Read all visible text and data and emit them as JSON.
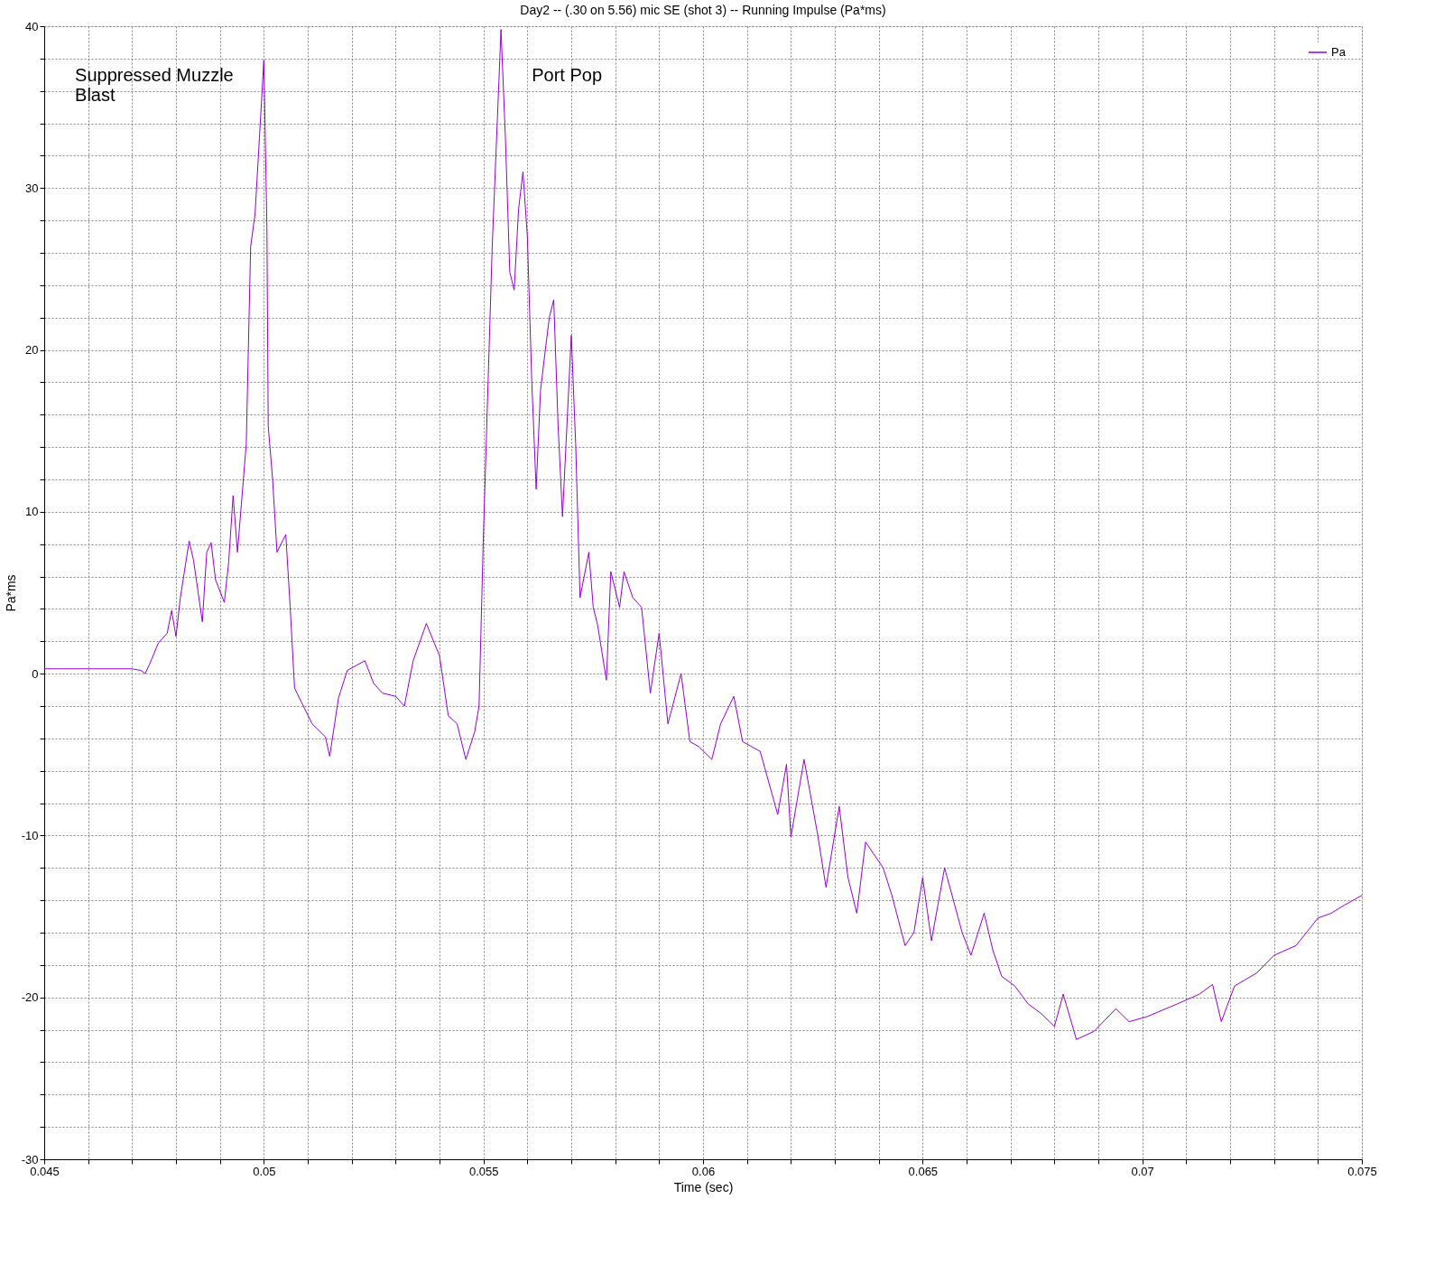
{
  "chart_data": {
    "type": "line",
    "title": "Day2 -- (.30 on 5.56) mic SE (shot 3) -- Running Impulse (Pa*ms)",
    "xlabel": "Time (sec)",
    "ylabel": "Pa*ms",
    "annotations": [
      "Suppressed Muzzle\nBlast",
      "Port Pop"
    ],
    "xlim": [
      0.045,
      0.075
    ],
    "ylim": [
      -30,
      40
    ],
    "xticks": [
      0.045,
      {
        "value": 0.046,
        "label": null
      },
      {
        "value": 0.047,
        "label": null
      },
      {
        "value": 0.048,
        "label": null
      },
      {
        "value": 0.049,
        "label": null
      },
      0.05,
      {
        "value": 0.051,
        "label": null
      },
      {
        "value": 0.052,
        "label": null
      },
      {
        "value": 0.053,
        "label": null
      },
      {
        "value": 0.054,
        "label": null
      },
      0.055,
      {
        "value": 0.056,
        "label": null
      },
      {
        "value": 0.057,
        "label": null
      },
      {
        "value": 0.058,
        "label": null
      },
      {
        "value": 0.059,
        "label": null
      },
      0.06,
      {
        "value": 0.061,
        "label": null
      },
      {
        "value": 0.062,
        "label": null
      },
      {
        "value": 0.063,
        "label": null
      },
      {
        "value": 0.064,
        "label": null
      },
      0.065,
      {
        "value": 0.066,
        "label": null
      },
      {
        "value": 0.067,
        "label": null
      },
      {
        "value": 0.068,
        "label": null
      },
      {
        "value": 0.069,
        "label": null
      },
      0.07,
      {
        "value": 0.071,
        "label": null
      },
      {
        "value": 0.072,
        "label": null
      },
      {
        "value": 0.073,
        "label": null
      },
      {
        "value": 0.074,
        "label": null
      },
      0.075
    ],
    "yticks": [
      -30,
      {
        "value": -28,
        "label": null
      },
      {
        "value": -26,
        "label": null
      },
      {
        "value": -24,
        "label": null
      },
      {
        "value": -22,
        "label": null
      },
      -20,
      {
        "value": -18,
        "label": null
      },
      {
        "value": -16,
        "label": null
      },
      {
        "value": -14,
        "label": null
      },
      {
        "value": -12,
        "label": null
      },
      -10,
      {
        "value": -8,
        "label": null
      },
      {
        "value": -6,
        "label": null
      },
      {
        "value": -4,
        "label": null
      },
      {
        "value": -2,
        "label": null
      },
      0,
      {
        "value": 2,
        "label": null
      },
      {
        "value": 4,
        "label": null
      },
      {
        "value": 6,
        "label": null
      },
      {
        "value": 8,
        "label": null
      },
      10,
      {
        "value": 12,
        "label": null
      },
      {
        "value": 14,
        "label": null
      },
      {
        "value": 16,
        "label": null
      },
      {
        "value": 18,
        "label": null
      },
      20,
      {
        "value": 22,
        "label": null
      },
      {
        "value": 24,
        "label": null
      },
      {
        "value": 26,
        "label": null
      },
      {
        "value": 28,
        "label": null
      },
      30,
      {
        "value": 32,
        "label": null
      },
      {
        "value": 34,
        "label": null
      },
      {
        "value": 36,
        "label": null
      },
      {
        "value": 38,
        "label": null
      },
      40
    ],
    "grid": true,
    "legend": "top right",
    "line_style": "solid",
    "marker": "none",
    "series": [
      {
        "name": "Pa",
        "color": "#9400d3",
        "x": [
          0.045,
          0.047,
          0.0472,
          0.0473,
          0.0474,
          0.0476,
          0.0478,
          0.0479,
          0.048,
          0.0481,
          0.0483,
          0.0484,
          0.0486,
          0.0487,
          0.0488,
          0.0489,
          0.0491,
          0.0492,
          0.0493,
          0.0494,
          0.0496,
          0.0497,
          0.0498,
          0.0499,
          0.05,
          0.05007,
          0.0501,
          0.0502,
          0.0503,
          0.0505,
          0.0506,
          0.0507,
          0.0509,
          0.0511,
          0.0514,
          0.0515,
          0.0517,
          0.0519,
          0.0523,
          0.0525,
          0.0527,
          0.053,
          0.0532,
          0.0534,
          0.0537,
          0.054,
          0.0542,
          0.0544,
          0.0546,
          0.0548,
          0.0549,
          0.055,
          0.0552,
          0.0554,
          0.0555,
          0.0556,
          0.0557,
          0.0558,
          0.0559,
          0.056,
          0.0561,
          0.0562,
          0.0563,
          0.0564,
          0.0565,
          0.0566,
          0.0567,
          0.0568,
          0.0569,
          0.057,
          0.0571,
          0.0572,
          0.0574,
          0.0575,
          0.0576,
          0.0578,
          0.0579,
          0.0581,
          0.0582,
          0.0584,
          0.0586,
          0.0588,
          0.059,
          0.0592,
          0.0595,
          0.0597,
          0.0599,
          0.0602,
          0.0604,
          0.0607,
          0.0609,
          0.0613,
          0.0617,
          0.0619,
          0.062,
          0.0623,
          0.0626,
          0.0628,
          0.0631,
          0.0633,
          0.0635,
          0.0637,
          0.0641,
          0.0643,
          0.0646,
          0.0648,
          0.065,
          0.0652,
          0.0655,
          0.0659,
          0.0661,
          0.0664,
          0.0666,
          0.0668,
          0.0671,
          0.0674,
          0.0677,
          0.068,
          0.0682,
          0.0685,
          0.0689,
          0.0694,
          0.0697,
          0.0701,
          0.0708,
          0.0713,
          0.0716,
          0.0718,
          0.0721,
          0.0726,
          0.073,
          0.0735,
          0.074,
          0.0743,
          0.0746,
          0.075
        ],
        "values": [
          0.3,
          0.3,
          0.2,
          0.0,
          0.6,
          1.9,
          2.5,
          3.9,
          2.3,
          4.7,
          8.2,
          7.0,
          3.2,
          7.5,
          8.1,
          5.8,
          4.4,
          6.9,
          11.0,
          7.5,
          14.2,
          26.4,
          28.4,
          33.1,
          37.9,
          27.6,
          15.3,
          12.0,
          7.5,
          8.6,
          4.1,
          -0.9,
          -2.0,
          -3.1,
          -3.9,
          -5.1,
          -1.5,
          0.2,
          0.8,
          -0.6,
          -1.2,
          -1.4,
          -2.0,
          0.8,
          3.1,
          1.1,
          -2.6,
          -3.1,
          -5.3,
          -3.6,
          -2.0,
          8.6,
          26.4,
          39.8,
          33.1,
          24.8,
          23.7,
          28.7,
          31.0,
          27.0,
          18.1,
          11.4,
          17.5,
          19.8,
          22.0,
          23.1,
          15.3,
          9.7,
          15.3,
          20.9,
          14.2,
          4.7,
          7.5,
          4.1,
          3.0,
          -0.4,
          6.3,
          4.1,
          6.3,
          4.7,
          4.1,
          -1.2,
          2.5,
          -3.1,
          0.0,
          -4.2,
          -4.5,
          -5.3,
          -3.1,
          -1.4,
          -4.2,
          -4.8,
          -8.7,
          -5.6,
          -10.1,
          -5.3,
          -9.8,
          -13.2,
          -8.2,
          -12.6,
          -14.8,
          -10.4,
          -12.0,
          -13.7,
          -16.8,
          -16.0,
          -12.6,
          -16.5,
          -12.0,
          -16.0,
          -17.4,
          -14.8,
          -17.1,
          -18.7,
          -19.3,
          -20.4,
          -21.0,
          -21.8,
          -19.8,
          -22.6,
          -22.1,
          -20.7,
          -21.5,
          -21.2,
          -20.4,
          -19.8,
          -19.2,
          -21.5,
          -19.3,
          -18.5,
          -17.4,
          -16.8,
          -15.1,
          -14.8,
          -14.3,
          -13.7
        ]
      }
    ]
  }
}
